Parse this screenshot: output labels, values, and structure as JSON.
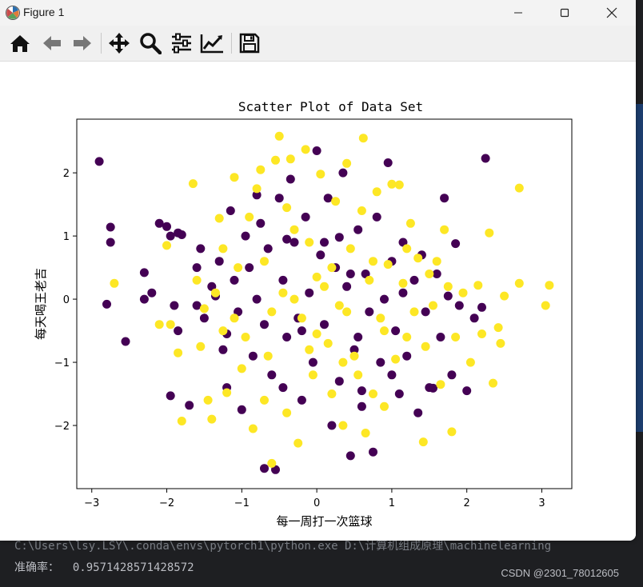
{
  "window": {
    "title": "Figure 1"
  },
  "toolbar": {
    "tools": [
      "home-icon",
      "back-arrow-icon",
      "forward-arrow-icon",
      "pan-icon",
      "zoom-icon",
      "subplots-icon",
      "edit-axis-icon",
      "save-icon"
    ]
  },
  "colors": {
    "class0": "#440154",
    "class1": "#fde725"
  },
  "chart_data": {
    "type": "scatter",
    "title": "Scatter Plot of Data Set",
    "xlabel": "每一周打一次篮球",
    "ylabel": "每天喝王老吉",
    "xlim": [
      -3.2,
      3.4
    ],
    "ylim": [
      -3.0,
      2.85
    ],
    "xticks": [
      -3,
      -2,
      -1,
      0,
      1,
      2,
      3
    ],
    "yticks": [
      -2,
      -1,
      0,
      1,
      2
    ],
    "xtick_labels": [
      "−3",
      "−2",
      "−1",
      "0",
      "1",
      "2",
      "3"
    ],
    "ytick_labels": [
      "−2",
      "−1",
      "0",
      "1",
      "2"
    ],
    "grid": false,
    "series": [
      {
        "color": "#440154",
        "points": [
          [
            -2.9,
            2.18
          ],
          [
            -2.75,
            1.14
          ],
          [
            -2.75,
            0.9
          ],
          [
            -2.8,
            -0.08
          ],
          [
            -2.55,
            -0.67
          ],
          [
            -2.3,
            0.42
          ],
          [
            -2.3,
            0.0
          ],
          [
            -2.2,
            0.1
          ],
          [
            -2.1,
            1.2
          ],
          [
            -2.0,
            1.15
          ],
          [
            -1.95,
            1.0
          ],
          [
            -1.85,
            1.05
          ],
          [
            -1.8,
            1.02
          ],
          [
            -1.9,
            -0.1
          ],
          [
            -1.85,
            -0.5
          ],
          [
            -1.95,
            -1.53
          ],
          [
            -1.7,
            -1.68
          ],
          [
            -1.6,
            0.5
          ],
          [
            -1.55,
            0.8
          ],
          [
            -1.5,
            -0.3
          ],
          [
            -1.4,
            0.2
          ],
          [
            -1.3,
            0.6
          ],
          [
            -1.25,
            -0.8
          ],
          [
            -1.2,
            -1.4
          ],
          [
            -1.15,
            1.4
          ],
          [
            -1.1,
            0.3
          ],
          [
            -1.05,
            -0.2
          ],
          [
            -1.0,
            -1.75
          ],
          [
            -0.95,
            1.0
          ],
          [
            -0.9,
            0.5
          ],
          [
            -0.85,
            -0.9
          ],
          [
            -0.8,
            1.65
          ],
          [
            -0.75,
            1.2
          ],
          [
            -0.7,
            -0.4
          ],
          [
            -0.65,
            0.8
          ],
          [
            -0.6,
            -1.2
          ],
          [
            -0.55,
            -2.7
          ],
          [
            -0.5,
            1.6
          ],
          [
            -0.45,
            0.3
          ],
          [
            -0.4,
            -0.6
          ],
          [
            -0.35,
            1.9
          ],
          [
            -0.3,
            0.9
          ],
          [
            -0.25,
            -0.3
          ],
          [
            -0.2,
            -1.6
          ],
          [
            -0.15,
            1.3
          ],
          [
            -0.1,
            0.1
          ],
          [
            -0.05,
            -1.0
          ],
          [
            0.0,
            2.35
          ],
          [
            0.05,
            0.7
          ],
          [
            0.1,
            -0.4
          ],
          [
            0.15,
            1.6
          ],
          [
            0.2,
            -2.0
          ],
          [
            0.25,
            0.5
          ],
          [
            0.3,
            -1.3
          ],
          [
            0.35,
            2.0
          ],
          [
            0.4,
            0.2
          ],
          [
            0.45,
            -2.48
          ],
          [
            0.5,
            -0.8
          ],
          [
            0.55,
            1.1
          ],
          [
            0.6,
            -1.7
          ],
          [
            0.65,
            0.4
          ],
          [
            0.7,
            -0.2
          ],
          [
            0.75,
            -2.42
          ],
          [
            0.8,
            1.3
          ],
          [
            0.85,
            -1.0
          ],
          [
            0.9,
            0.0
          ],
          [
            0.95,
            2.16
          ],
          [
            1.0,
            0.6
          ],
          [
            1.05,
            -0.5
          ],
          [
            1.1,
            -1.5
          ],
          [
            1.15,
            0.9
          ],
          [
            1.2,
            -0.9
          ],
          [
            1.3,
            0.3
          ],
          [
            1.35,
            -1.8
          ],
          [
            1.4,
            0.7
          ],
          [
            1.45,
            -0.2
          ],
          [
            1.5,
            -1.4
          ],
          [
            1.6,
            0.4
          ],
          [
            1.65,
            -0.6
          ],
          [
            1.7,
            1.6
          ],
          [
            1.75,
            0.05
          ],
          [
            1.8,
            -1.2
          ],
          [
            1.85,
            0.88
          ],
          [
            1.9,
            -0.1
          ],
          [
            2.0,
            -1.45
          ],
          [
            2.1,
            -0.3
          ],
          [
            2.2,
            -0.13
          ],
          [
            2.25,
            2.23
          ],
          [
            -0.7,
            -2.68
          ],
          [
            -0.4,
            0.95
          ],
          [
            0.3,
            0.98
          ],
          [
            -1.2,
            -0.55
          ],
          [
            0.6,
            -1.45
          ],
          [
            1.0,
            -1.2
          ],
          [
            -0.2,
            -0.5
          ],
          [
            0.45,
            0.4
          ],
          [
            -1.6,
            -0.1
          ],
          [
            0.1,
            0.9
          ],
          [
            1.15,
            0.1
          ],
          [
            -0.8,
            0.0
          ],
          [
            0.55,
            -0.6
          ],
          [
            -0.45,
            -1.4
          ],
          [
            1.55,
            -1.41
          ],
          [
            -1.35,
            0.05
          ]
        ]
      },
      {
        "color": "#fde725",
        "points": [
          [
            -2.7,
            0.25
          ],
          [
            -2.1,
            -0.4
          ],
          [
            -2.0,
            0.85
          ],
          [
            -1.95,
            -0.4
          ],
          [
            -1.85,
            -0.85
          ],
          [
            -1.8,
            -1.93
          ],
          [
            -1.65,
            1.83
          ],
          [
            -1.6,
            0.3
          ],
          [
            -1.5,
            -0.15
          ],
          [
            -1.45,
            -1.6
          ],
          [
            -1.4,
            -1.9
          ],
          [
            -1.35,
            0.1
          ],
          [
            -1.3,
            1.28
          ],
          [
            -1.25,
            -0.5
          ],
          [
            -1.2,
            -1.48
          ],
          [
            -1.1,
            1.93
          ],
          [
            -1.05,
            0.5
          ],
          [
            -0.95,
            -0.6
          ],
          [
            -0.9,
            1.3
          ],
          [
            -0.85,
            -2.05
          ],
          [
            -0.75,
            2.05
          ],
          [
            -0.7,
            0.6
          ],
          [
            -0.65,
            -0.9
          ],
          [
            -0.6,
            -2.6
          ],
          [
            -0.55,
            2.2
          ],
          [
            -0.5,
            2.58
          ],
          [
            -0.45,
            0.1
          ],
          [
            -0.4,
            -1.8
          ],
          [
            -0.35,
            2.22
          ],
          [
            -0.3,
            1.1
          ],
          [
            -0.25,
            -2.28
          ],
          [
            -0.2,
            -0.3
          ],
          [
            -0.15,
            2.37
          ],
          [
            -0.1,
            0.9
          ],
          [
            -0.05,
            -1.2
          ],
          [
            0.05,
            1.98
          ],
          [
            0.1,
            0.2
          ],
          [
            0.15,
            -0.7
          ],
          [
            0.2,
            -1.5
          ],
          [
            0.25,
            1.55
          ],
          [
            0.3,
            -0.1
          ],
          [
            0.35,
            -2.0
          ],
          [
            0.4,
            2.15
          ],
          [
            0.45,
            0.8
          ],
          [
            0.5,
            -0.9
          ],
          [
            0.55,
            -1.2
          ],
          [
            0.62,
            2.55
          ],
          [
            0.65,
            -2.12
          ],
          [
            0.7,
            0.3
          ],
          [
            0.75,
            -1.5
          ],
          [
            0.8,
            1.7
          ],
          [
            0.85,
            -0.3
          ],
          [
            0.9,
            -1.7
          ],
          [
            0.95,
            0.55
          ],
          [
            1.0,
            1.82
          ],
          [
            1.05,
            -0.95
          ],
          [
            1.1,
            1.81
          ],
          [
            1.15,
            0.25
          ],
          [
            1.2,
            -0.6
          ],
          [
            1.25,
            1.2
          ],
          [
            1.3,
            -0.2
          ],
          [
            1.35,
            0.65
          ],
          [
            1.42,
            -2.26
          ],
          [
            1.5,
            0.4
          ],
          [
            1.55,
            -0.1
          ],
          [
            1.6,
            0.6
          ],
          [
            1.65,
            -1.35
          ],
          [
            1.7,
            1.1
          ],
          [
            1.75,
            0.2
          ],
          [
            1.8,
            -2.1
          ],
          [
            1.85,
            -0.6
          ],
          [
            1.95,
            0.1
          ],
          [
            2.05,
            -1.0
          ],
          [
            2.15,
            0.22
          ],
          [
            2.2,
            -0.55
          ],
          [
            2.3,
            1.05
          ],
          [
            2.35,
            -1.33
          ],
          [
            2.42,
            -0.45
          ],
          [
            2.45,
            -0.7
          ],
          [
            2.5,
            0.05
          ],
          [
            2.7,
            1.76
          ],
          [
            2.7,
            0.25
          ],
          [
            3.05,
            -0.1
          ],
          [
            3.1,
            0.22
          ],
          [
            -1.55,
            -0.75
          ],
          [
            0.0,
            -0.55
          ],
          [
            -0.3,
            0.0
          ],
          [
            0.4,
            -0.2
          ],
          [
            -0.8,
            1.75
          ],
          [
            0.6,
            1.4
          ],
          [
            -1.0,
            -1.1
          ],
          [
            1.2,
            0.8
          ],
          [
            -0.6,
            -0.2
          ],
          [
            0.2,
            0.5
          ],
          [
            -0.1,
            -0.8
          ],
          [
            0.9,
            -0.5
          ],
          [
            -1.25,
            0.8
          ],
          [
            1.45,
            -0.75
          ],
          [
            -0.4,
            1.45
          ],
          [
            0.35,
            -1.0
          ],
          [
            -0.7,
            -1.6
          ],
          [
            0.75,
            0.6
          ],
          [
            -1.1,
            -0.3
          ],
          [
            0.0,
            0.35
          ]
        ]
      }
    ]
  },
  "terminal": {
    "line1": "C:\\Users\\lsy.LSY\\.conda\\envs\\pytorch1\\python.exe D:\\计算机组成原理\\machinelearning",
    "line2_label": "准确率：",
    "line2_value": "0.9571428571428572",
    "watermark": "CSDN @2301_78012605"
  }
}
